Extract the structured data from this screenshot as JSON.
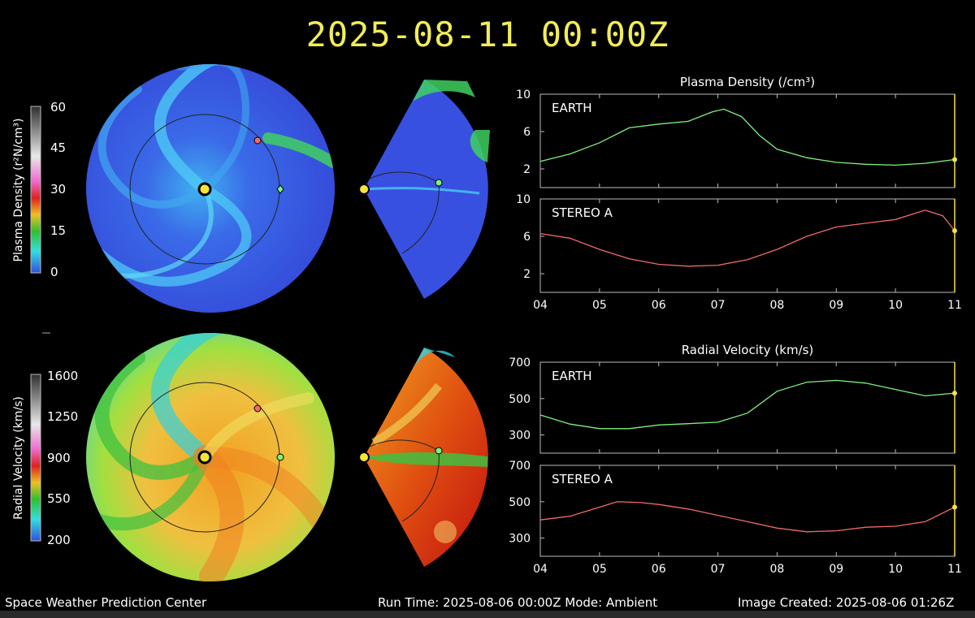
{
  "title": "2025-08-11 00:00Z",
  "footer": {
    "left": "Space Weather Prediction Center",
    "center": "Run Time: 2025-08-06 00:00Z  Mode: Ambient",
    "right": "Image Created: 2025-08-06 01:26Z"
  },
  "colors": {
    "title": "#f2ec58",
    "earth": "#7ef07e",
    "stereo_a": "#f06a6a",
    "sun": "#f5e43a",
    "density_background": "#3a55e0",
    "marker_line": "#f5e43a"
  },
  "colorbars": {
    "density": {
      "label": "Plasma Density (r²N/cm³)",
      "ticks": [
        "60",
        "45",
        "30",
        "15",
        "0"
      ]
    },
    "velocity": {
      "label": "Radial Velocity (km/s)",
      "ticks": [
        "1600",
        "1250",
        "900",
        "550",
        "200"
      ]
    }
  },
  "chart_data": [
    {
      "type": "line",
      "title": "Plasma Density (/cm³)",
      "panel": "EARTH",
      "x": [
        "04",
        "05",
        "06",
        "07",
        "08",
        "09",
        "10",
        "11"
      ],
      "ylim": [
        0,
        10
      ],
      "yticks": [
        "10",
        "6",
        "2"
      ],
      "series": [
        {
          "name": "EARTH",
          "color": "#7ef07e",
          "points": [
            [
              0,
              2.8
            ],
            [
              0.5,
              3.6
            ],
            [
              1,
              4.8
            ],
            [
              1.5,
              6.4
            ],
            [
              2,
              6.8
            ],
            [
              2.5,
              7.1
            ],
            [
              2.9,
              8.1
            ],
            [
              3.1,
              8.4
            ],
            [
              3.4,
              7.6
            ],
            [
              3.7,
              5.6
            ],
            [
              4,
              4.1
            ],
            [
              4.5,
              3.2
            ],
            [
              5,
              2.7
            ],
            [
              5.5,
              2.5
            ],
            [
              6,
              2.4
            ],
            [
              6.5,
              2.6
            ],
            [
              7,
              3.0
            ]
          ]
        }
      ]
    },
    {
      "type": "line",
      "panel": "STEREO A",
      "x": [
        "04",
        "05",
        "06",
        "07",
        "08",
        "09",
        "10",
        "11"
      ],
      "xtick_labels": [
        "04",
        "05",
        "06",
        "07",
        "08",
        "09",
        "10",
        "11"
      ],
      "ylim": [
        0,
        10
      ],
      "yticks": [
        "10",
        "6",
        "2"
      ],
      "series": [
        {
          "name": "STEREO A",
          "color": "#f06a6a",
          "points": [
            [
              0,
              6.3
            ],
            [
              0.5,
              5.8
            ],
            [
              1,
              4.6
            ],
            [
              1.5,
              3.6
            ],
            [
              2,
              3.0
            ],
            [
              2.5,
              2.8
            ],
            [
              3,
              2.9
            ],
            [
              3.5,
              3.5
            ],
            [
              4,
              4.6
            ],
            [
              4.5,
              6.0
            ],
            [
              5,
              7.0
            ],
            [
              5.5,
              7.4
            ],
            [
              6,
              7.8
            ],
            [
              6.5,
              8.8
            ],
            [
              6.8,
              8.2
            ],
            [
              7,
              6.6
            ]
          ]
        }
      ]
    },
    {
      "type": "line",
      "title": "Radial Velocity (km/s)",
      "panel": "EARTH",
      "x": [
        "04",
        "05",
        "06",
        "07",
        "08",
        "09",
        "10",
        "11"
      ],
      "ylim": [
        200,
        700
      ],
      "yticks": [
        "700",
        "500",
        "300"
      ],
      "series": [
        {
          "name": "EARTH",
          "color": "#7ef07e",
          "points": [
            [
              0,
              410
            ],
            [
              0.5,
              360
            ],
            [
              1,
              335
            ],
            [
              1.5,
              335
            ],
            [
              2,
              355
            ],
            [
              2.5,
              362
            ],
            [
              3,
              370
            ],
            [
              3.5,
              420
            ],
            [
              4,
              540
            ],
            [
              4.5,
              590
            ],
            [
              5,
              600
            ],
            [
              5.5,
              585
            ],
            [
              6,
              550
            ],
            [
              6.5,
              515
            ],
            [
              7,
              530
            ]
          ]
        }
      ]
    },
    {
      "type": "line",
      "panel": "STEREO A",
      "x": [
        "04",
        "05",
        "06",
        "07",
        "08",
        "09",
        "10",
        "11"
      ],
      "xtick_labels": [
        "04",
        "05",
        "06",
        "07",
        "08",
        "09",
        "10",
        "11"
      ],
      "ylim": [
        200,
        700
      ],
      "yticks": [
        "700",
        "500",
        "300"
      ],
      "series": [
        {
          "name": "STEREO A",
          "color": "#f06a6a",
          "points": [
            [
              0,
              400
            ],
            [
              0.5,
              420
            ],
            [
              1,
              470
            ],
            [
              1.3,
              500
            ],
            [
              1.7,
              495
            ],
            [
              2,
              485
            ],
            [
              2.5,
              460
            ],
            [
              3,
              425
            ],
            [
              3.5,
              390
            ],
            [
              4,
              355
            ],
            [
              4.5,
              335
            ],
            [
              5,
              340
            ],
            [
              5.5,
              360
            ],
            [
              6,
              365
            ],
            [
              6.5,
              390
            ],
            [
              7,
              470
            ]
          ]
        }
      ]
    }
  ]
}
